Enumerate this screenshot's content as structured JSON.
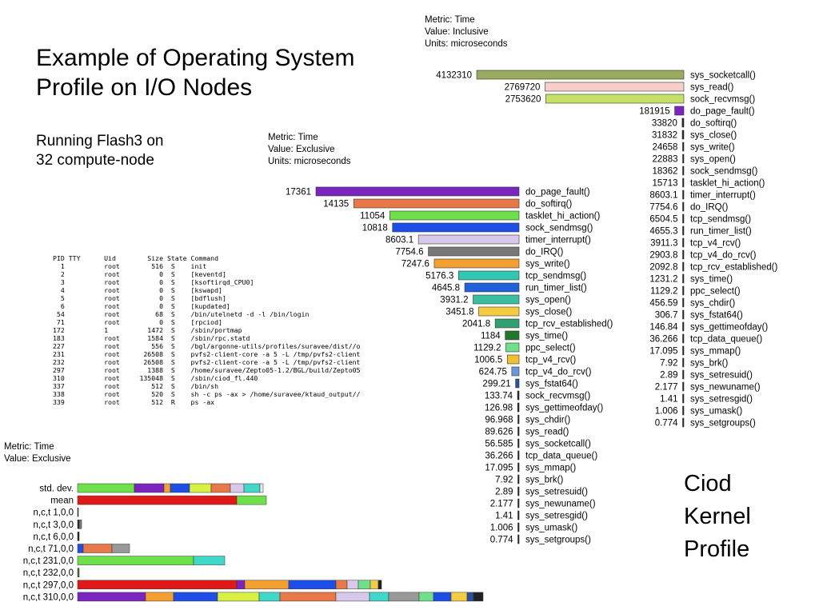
{
  "slide": {
    "title_line1": "Example of Operating System",
    "title_line2": "Profile on I/O Nodes",
    "subtitle_line1": "Running Flash3 on",
    "subtitle_line2": "32 compute-node",
    "ciod_line1": "Ciod",
    "ciod_line2": "Kernel",
    "ciod_line3": "Profile"
  },
  "ps_table": {
    "header": "PID TTY      Uid        Size State Command",
    "rows": [
      "  1          root        516  S    init",
      "  2          root          0  S    [keventd]",
      "  3          root          0  S    [ksoftirqd_CPU0]",
      "  4          root          0  S    [kswapd]",
      "  5          root          0  S    [bdflush]",
      "  6          root          0  S    [kupdated]",
      " 54          root         68  S    /bin/utelnetd -d -l /bin/login",
      " 71          root          0  S    [rpciod]",
      "172          1          1472  S    /sbin/portmap",
      "183          root       1584  S    /sbin/rpc.statd",
      "227          root        556  S    /bgl/argonne-utils/profiles/suravee/dist//o",
      "231          root      26508  S    pvfs2-client-core -a 5 -L /tmp/pvfs2-client",
      "232          root      26508  S    pvfs2-client-core -a 5 -L /tmp/pvfs2-client",
      "297          root       1388  S    /home/suravee/Zepto05-1.2/BGL/build/Zepto05",
      "310          root     135048  S    /sbin/ciod_fl.440",
      "337          root        512  S    /bin/sh",
      "338          root        520  S    sh -c ps -ax > /home/suravee/ktaud_output//",
      "339          root        512  R    ps -ax"
    ]
  },
  "chart_data": [
    {
      "type": "bar",
      "orientation": "horizontal",
      "meta": [
        "Metric: Time",
        "Value: Inclusive",
        "Units: microseconds"
      ],
      "categories": [
        "sys_socketcall()",
        "sys_read()",
        "sock_recvmsg()",
        "do_page_fault()",
        "do_softirq()",
        "sys_close()",
        "sys_write()",
        "sys_open()",
        "sock_sendmsg()",
        "tasklet_hi_action()",
        "timer_interrupt()",
        "do_IRQ()",
        "tcp_sendmsg()",
        "run_timer_list()",
        "tcp_v4_rcv()",
        "tcp_v4_do_rcv()",
        "tcp_rcv_established()",
        "sys_time()",
        "ppc_select()",
        "sys_chdir()",
        "sys_fstat64()",
        "sys_gettimeofday()",
        "tcp_data_queue()",
        "sys_mmap()",
        "sys_brk()",
        "sys_setresuid()",
        "sys_newuname()",
        "sys_setresgid()",
        "sys_umask()",
        "sys_setgroups()"
      ],
      "value_labels": [
        "4132310",
        "2769720",
        "2753620",
        "181915",
        "33820",
        "31832",
        "24658",
        "22883",
        "18362",
        "15713",
        "8603.1",
        "7754.6",
        "6504.5",
        "4655.3",
        "3911.3",
        "2903.8",
        "2092.8",
        "1231.2",
        "1129.2",
        "456.59",
        "306.7",
        "146.84",
        "36.266",
        "17.095",
        "7.92",
        "2.89",
        "2.177",
        "1.41",
        "1.006",
        "0.774"
      ],
      "values": [
        4132310,
        2769720,
        2753620,
        181915,
        33820,
        31832,
        24658,
        22883,
        18362,
        15713,
        8603.1,
        7754.6,
        6504.5,
        4655.3,
        3911.3,
        2903.8,
        2092.8,
        1231.2,
        1129.2,
        456.59,
        306.7,
        146.84,
        36.266,
        17.095,
        7.92,
        2.89,
        2.177,
        1.41,
        1.006,
        0.774
      ],
      "colors": [
        "#9aaa5e",
        "#f7cfc8",
        "#c6e066",
        "#7a25c0",
        "#222222",
        "#222222",
        "#222222",
        "#222222",
        "#222222",
        "#222222",
        "#222222",
        "#222222",
        "#222222",
        "#222222",
        "#222222",
        "#222222",
        "#222222",
        "#222222",
        "#222222",
        "#222222",
        "#222222",
        "#222222",
        "#222222",
        "#222222",
        "#222222",
        "#222222",
        "#222222",
        "#222222",
        "#222222",
        "#222222"
      ]
    },
    {
      "type": "bar",
      "orientation": "horizontal",
      "meta": [
        "Metric: Time",
        "Value: Exclusive",
        "Units: microseconds"
      ],
      "categories": [
        "do_page_fault()",
        "do_softirq()",
        "tasklet_hi_action()",
        "sock_sendmsg()",
        "timer_interrupt()",
        "do_IRQ()",
        "sys_write()",
        "tcp_sendmsg()",
        "run_timer_list()",
        "sys_open()",
        "sys_close()",
        "tcp_rcv_established()",
        "sys_time()",
        "ppc_select()",
        "tcp_v4_rcv()",
        "tcp_v4_do_rcv()",
        "sys_fstat64()",
        "sock_recvmsg()",
        "sys_gettimeofday()",
        "sys_chdir()",
        "sys_read()",
        "sys_socketcall()",
        "tcp_data_queue()",
        "sys_mmap()",
        "sys_brk()",
        "sys_setresuid()",
        "sys_newuname()",
        "sys_setresgid()",
        "sys_umask()",
        "sys_setgroups()"
      ],
      "value_labels": [
        "17361",
        "14135",
        "11054",
        "10818",
        "8603.1",
        "7754.6",
        "7247.6",
        "5176.3",
        "4645.8",
        "3931.2",
        "3451.8",
        "2041.8",
        "1184",
        "1129.2",
        "1006.5",
        "624.75",
        "299.21",
        "133.74",
        "126.98",
        "96.968",
        "89.626",
        "56.585",
        "36.266",
        "17.095",
        "7.92",
        "2.89",
        "2.177",
        "1.41",
        "1.006",
        "0.774"
      ],
      "values": [
        17361,
        14135,
        11054,
        10818,
        8603.1,
        7754.6,
        7247.6,
        5176.3,
        4645.8,
        3931.2,
        3451.8,
        2041.8,
        1184,
        1129.2,
        1006.5,
        624.75,
        299.21,
        133.74,
        126.98,
        96.968,
        89.626,
        56.585,
        36.266,
        17.095,
        7.92,
        2.89,
        2.177,
        1.41,
        1.006,
        0.774
      ],
      "colors": [
        "#7a25c0",
        "#e87848",
        "#6ee04a",
        "#1e4ee8",
        "#d8c8ec",
        "#787878",
        "#f4a030",
        "#30c8b0",
        "#2060d8",
        "#3ac0a0",
        "#f4cc44",
        "#30a070",
        "#207828",
        "#6ee08c",
        "#f0c030",
        "#6898d8",
        "#2a50a0",
        "#222222",
        "#222222",
        "#222222",
        "#222222",
        "#222222",
        "#222222",
        "#222222",
        "#222222",
        "#222222",
        "#222222",
        "#222222",
        "#222222",
        "#222222"
      ]
    },
    {
      "type": "stacked_bar",
      "orientation": "horizontal",
      "meta": [
        "Metric: Time",
        "Value: Exclusive"
      ],
      "categories": [
        "std. dev.",
        "mean",
        "n,c,t 1,0,0",
        "n,c,t 3,0,0",
        "n,c,t 6,0,0",
        "n,c,t 71,0,0",
        "n,c,t 231,0,0",
        "n,c,t 232,0,0",
        "n,c,t 297,0,0",
        "n,c,t 310,0,0"
      ],
      "segments": [
        [
          {
            "v": 71,
            "c": "#6ee04a"
          },
          {
            "v": 37,
            "c": "#7a25c0"
          },
          {
            "v": 8,
            "c": "#f4a030"
          },
          {
            "v": 24,
            "c": "#1e4ee8"
          },
          {
            "v": 27,
            "c": "#d8f040"
          },
          {
            "v": 24,
            "c": "#e87848"
          },
          {
            "v": 17,
            "c": "#d8c8ec"
          },
          {
            "v": 20,
            "c": "#40d8c8"
          },
          {
            "v": 4,
            "c": "#e8e8e8"
          }
        ],
        [
          {
            "v": 199,
            "c": "#e01818"
          },
          {
            "v": 37,
            "c": "#6ee04a"
          }
        ],
        [
          {
            "v": 1,
            "c": "#222222"
          }
        ],
        [
          {
            "v": 2,
            "c": "#222222"
          },
          {
            "v": 3,
            "c": "#7a7a7a"
          }
        ],
        [
          {
            "v": 2,
            "c": "#222222"
          }
        ],
        [
          {
            "v": 7,
            "c": "#1e4ee8"
          },
          {
            "v": 36,
            "c": "#e87848"
          },
          {
            "v": 22,
            "c": "#999999"
          }
        ],
        [
          {
            "v": 145,
            "c": "#6ee04a"
          },
          {
            "v": 39,
            "c": "#40d8c8"
          }
        ],
        [
          {
            "v": 2,
            "c": "#3a7a2a"
          }
        ],
        [
          {
            "v": 199,
            "c": "#e01818"
          },
          {
            "v": 10,
            "c": "#7a25c0"
          },
          {
            "v": 55,
            "c": "#f4a030"
          },
          {
            "v": 59,
            "c": "#1e4ee8"
          },
          {
            "v": 14,
            "c": "#e87848"
          },
          {
            "v": 14,
            "c": "#d8c8ec"
          },
          {
            "v": 15,
            "c": "#6ee08c"
          },
          {
            "v": 10,
            "c": "#f4cc44"
          },
          {
            "v": 4,
            "c": "#222222"
          }
        ],
        [
          {
            "v": 85,
            "c": "#7a25c0"
          },
          {
            "v": 35,
            "c": "#f4a030"
          },
          {
            "v": 55,
            "c": "#1e4ee8"
          },
          {
            "v": 52,
            "c": "#d8f040"
          },
          {
            "v": 26,
            "c": "#40d8c8"
          },
          {
            "v": 70,
            "c": "#e87848"
          },
          {
            "v": 42,
            "c": "#d8c8ec"
          },
          {
            "v": 24,
            "c": "#40d8c8"
          },
          {
            "v": 38,
            "c": "#999999"
          },
          {
            "v": 18,
            "c": "#6ee08c"
          },
          {
            "v": 22,
            "c": "#1e4ee8"
          },
          {
            "v": 20,
            "c": "#f4cc44"
          },
          {
            "v": 8,
            "c": "#2a50a0"
          },
          {
            "v": 12,
            "c": "#222222"
          }
        ]
      ]
    }
  ]
}
